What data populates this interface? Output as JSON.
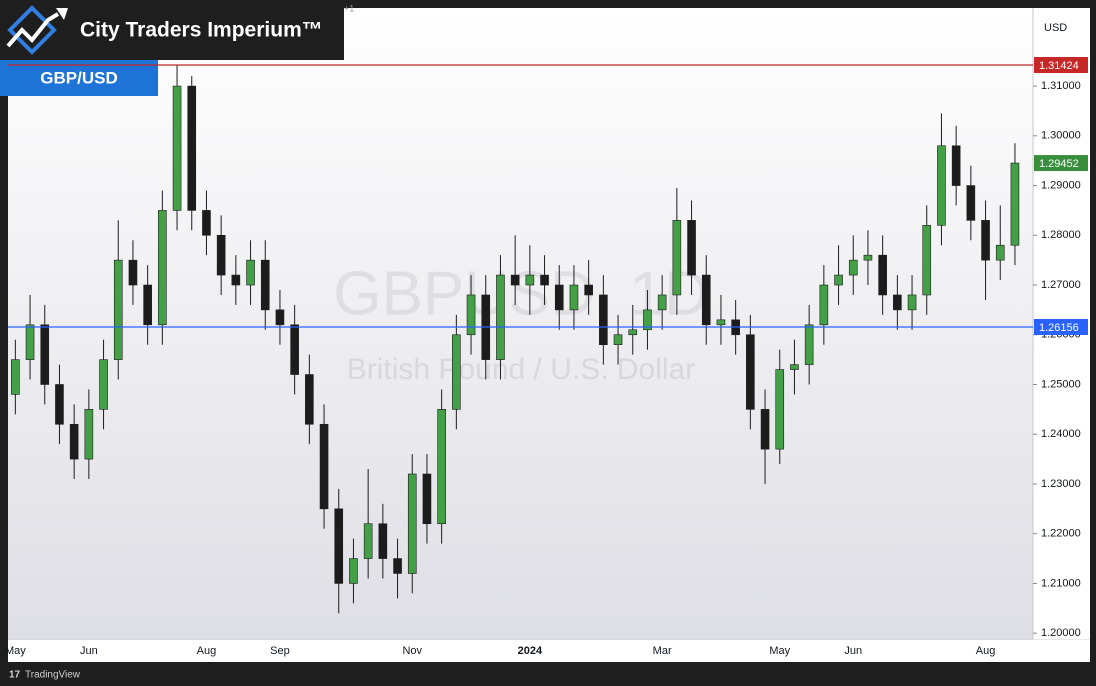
{
  "header": {
    "logo_text": "City Traders Imperium™",
    "badge": "GBP/USD"
  },
  "footer": {
    "brand": "TradingView"
  },
  "chart_data": {
    "type": "candlestick",
    "title": "GBPUSD, 1D",
    "subtitle": "British Pound / U.S. Dollar",
    "y_axis_label": "USD",
    "corner_note": "+1",
    "categories": [
      "May",
      null,
      null,
      null,
      null,
      "Jun",
      null,
      null,
      null,
      null,
      null,
      null,
      null,
      "Aug",
      null,
      null,
      null,
      null,
      "Sep",
      null,
      null,
      null,
      null,
      null,
      null,
      null,
      null,
      "Nov",
      null,
      null,
      null,
      null,
      null,
      null,
      null,
      "2024",
      null,
      null,
      null,
      null,
      null,
      null,
      null,
      null,
      "Mar",
      null,
      null,
      null,
      null,
      null,
      null,
      null,
      "May",
      null,
      null,
      null,
      null,
      "Jun",
      null,
      null,
      null,
      null,
      null,
      null,
      null,
      null,
      "Aug",
      null,
      null
    ],
    "open": [
      1.248,
      1.255,
      1.262,
      1.25,
      1.242,
      1.235,
      1.245,
      1.255,
      1.275,
      1.27,
      1.262,
      1.285,
      1.31,
      1.285,
      1.28,
      1.272,
      1.27,
      1.275,
      1.265,
      1.262,
      1.252,
      1.242,
      1.225,
      1.21,
      1.215,
      1.222,
      1.215,
      1.212,
      1.232,
      1.222,
      1.245,
      1.26,
      1.268,
      1.255,
      1.272,
      1.27,
      1.272,
      1.27,
      1.265,
      1.27,
      1.268,
      1.258,
      1.26,
      1.261,
      1.265,
      1.268,
      1.283,
      1.272,
      1.262,
      1.263,
      1.26,
      1.245,
      1.237,
      1.253,
      1.254,
      1.262,
      1.27,
      1.272,
      1.275,
      1.276,
      1.268,
      1.265,
      1.268,
      1.282,
      1.298,
      1.29,
      1.283,
      1.275,
      1.278
    ],
    "high": [
      1.259,
      1.268,
      1.266,
      1.254,
      1.246,
      1.249,
      1.259,
      1.283,
      1.279,
      1.274,
      1.289,
      1.31424,
      1.312,
      1.289,
      1.284,
      1.276,
      1.279,
      1.279,
      1.269,
      1.266,
      1.256,
      1.246,
      1.229,
      1.219,
      1.233,
      1.226,
      1.219,
      1.236,
      1.236,
      1.249,
      1.264,
      1.272,
      1.272,
      1.276,
      1.28,
      1.278,
      1.276,
      1.274,
      1.274,
      1.275,
      1.272,
      1.264,
      1.266,
      1.269,
      1.272,
      1.2895,
      1.287,
      1.276,
      1.268,
      1.267,
      1.264,
      1.249,
      1.257,
      1.259,
      1.266,
      1.274,
      1.278,
      1.28,
      1.281,
      1.28,
      1.272,
      1.272,
      1.286,
      1.3045,
      1.302,
      1.294,
      1.287,
      1.286,
      1.2985
    ],
    "low": [
      1.244,
      1.251,
      1.246,
      1.238,
      1.231,
      1.231,
      1.241,
      1.251,
      1.266,
      1.258,
      1.258,
      1.281,
      1.281,
      1.276,
      1.268,
      1.266,
      1.266,
      1.261,
      1.258,
      1.248,
      1.238,
      1.221,
      1.204,
      1.206,
      1.211,
      1.211,
      1.207,
      1.208,
      1.218,
      1.218,
      1.241,
      1.256,
      1.251,
      1.251,
      1.266,
      1.264,
      1.266,
      1.261,
      1.261,
      1.264,
      1.254,
      1.254,
      1.256,
      1.257,
      1.261,
      1.264,
      1.268,
      1.258,
      1.258,
      1.256,
      1.241,
      1.23,
      1.234,
      1.248,
      1.25,
      1.258,
      1.266,
      1.268,
      1.27,
      1.264,
      1.261,
      1.261,
      1.264,
      1.278,
      1.286,
      1.279,
      1.267,
      1.271,
      1.274
    ],
    "close": [
      1.255,
      1.262,
      1.25,
      1.242,
      1.235,
      1.245,
      1.255,
      1.275,
      1.27,
      1.262,
      1.285,
      1.31,
      1.285,
      1.28,
      1.272,
      1.27,
      1.275,
      1.265,
      1.262,
      1.252,
      1.242,
      1.225,
      1.21,
      1.215,
      1.222,
      1.215,
      1.212,
      1.232,
      1.222,
      1.245,
      1.26,
      1.268,
      1.255,
      1.272,
      1.27,
      1.272,
      1.27,
      1.265,
      1.27,
      1.268,
      1.258,
      1.26,
      1.261,
      1.265,
      1.268,
      1.283,
      1.272,
      1.262,
      1.263,
      1.26,
      1.245,
      1.237,
      1.253,
      1.254,
      1.262,
      1.27,
      1.272,
      1.275,
      1.276,
      1.268,
      1.265,
      1.268,
      1.282,
      1.298,
      1.29,
      1.283,
      1.275,
      1.278,
      1.29452
    ],
    "up_color": "#43a047",
    "down_color": "#1c1c1c",
    "last_price_color": "#388e3c",
    "ylim": [
      1.1942,
      1.3257
    ],
    "yticks": [
      {
        "value": 1.2,
        "label": "1.20000"
      },
      {
        "value": 1.21,
        "label": "1.21000"
      },
      {
        "value": 1.22,
        "label": "1.22000"
      },
      {
        "value": 1.23,
        "label": "1.23000"
      },
      {
        "value": 1.24,
        "label": "1.24000"
      },
      {
        "value": 1.25,
        "label": "1.25000"
      },
      {
        "value": 1.26,
        "label": "1.26000"
      },
      {
        "value": 1.27,
        "label": "1.27000"
      },
      {
        "value": 1.28,
        "label": "1.28000"
      },
      {
        "value": 1.29,
        "label": "1.29000"
      },
      {
        "value": 1.3,
        "label": "1.30000"
      },
      {
        "value": 1.31,
        "label": "1.31000"
      }
    ],
    "hlines": [
      {
        "value": 1.31424,
        "color": "#c62828"
      },
      {
        "value": 1.26156,
        "color": "#2962ff"
      }
    ]
  }
}
